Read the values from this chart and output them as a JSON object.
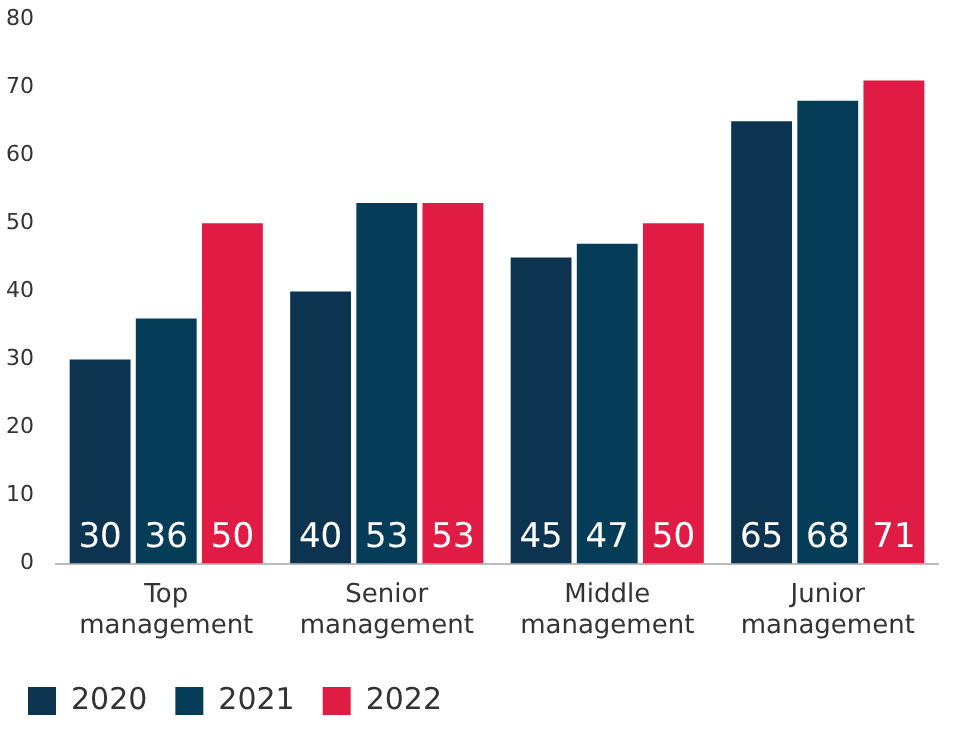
{
  "chart_data": {
    "type": "bar",
    "categories": [
      "Top management",
      "Senior management",
      "Middle management",
      "Junior management"
    ],
    "series": [
      {
        "name": "2020",
        "color": "#0c3350",
        "values": [
          30,
          40,
          45,
          65
        ]
      },
      {
        "name": "2021",
        "color": "#053d58",
        "values": [
          36,
          53,
          47,
          68
        ]
      },
      {
        "name": "2022",
        "color": "#e01b44",
        "values": [
          50,
          53,
          50,
          71
        ]
      }
    ],
    "ylim": [
      0,
      80
    ],
    "yticks": [
      0,
      10,
      20,
      30,
      40,
      50,
      60,
      70,
      80
    ],
    "grid": false,
    "legend": "bottom left",
    "data_labels": true
  }
}
